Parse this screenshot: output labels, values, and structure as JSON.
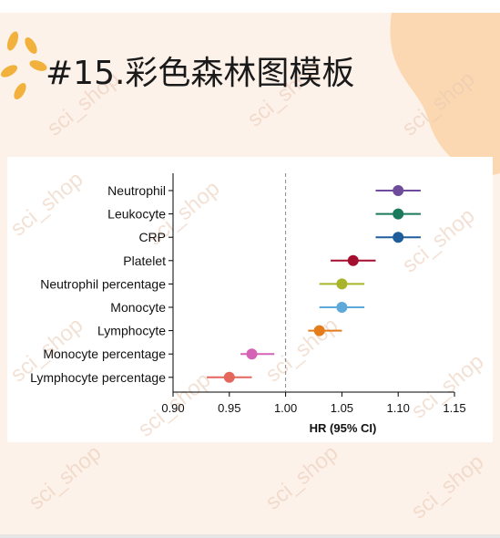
{
  "header": {
    "title": "#15.彩色森林图模板"
  },
  "watermark": "sci_shop",
  "chart_data": {
    "type": "forest",
    "categories": [
      "Neutrophil",
      "Leukocyte",
      "CRP",
      "Platelet",
      "Neutrophil percentage",
      "Monocyte",
      "Lymphocyte",
      "Monocyte percentage",
      "Lymphocyte percentage"
    ],
    "values": [
      1.1,
      1.1,
      1.1,
      1.06,
      1.05,
      1.05,
      1.03,
      0.97,
      0.95
    ],
    "lower": [
      1.08,
      1.08,
      1.08,
      1.04,
      1.03,
      1.03,
      1.02,
      0.96,
      0.93
    ],
    "upper": [
      1.12,
      1.12,
      1.12,
      1.08,
      1.07,
      1.07,
      1.05,
      0.99,
      0.97
    ],
    "colors": [
      "#6f4c9b",
      "#1b7a5c",
      "#1f5d9c",
      "#a50f2f",
      "#a8b52b",
      "#5ea9d9",
      "#e57c1c",
      "#d463b6",
      "#e3675c"
    ],
    "xlabel": "HR (95% CI)",
    "xlim": [
      0.9,
      1.15
    ],
    "xticks": [
      {
        "value": 0.9,
        "label": "0.90"
      },
      {
        "value": 0.95,
        "label": "0.95"
      },
      {
        "value": 1.0,
        "label": "1.00"
      },
      {
        "value": 1.05,
        "label": "1.05"
      },
      {
        "value": 1.1,
        "label": "1.10"
      },
      {
        "value": 1.15,
        "label": "1.15"
      }
    ],
    "refline": 1.0
  }
}
